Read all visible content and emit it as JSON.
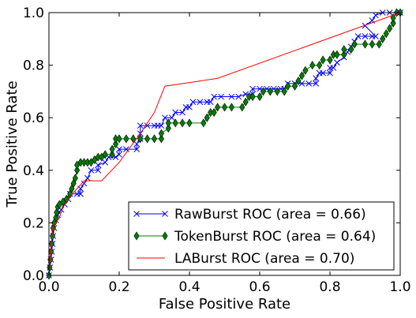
{
  "chart_data": {
    "type": "line",
    "title": "",
    "xlabel": "False Positive Rate",
    "ylabel": "True Positive Rate",
    "xlim": [
      0.0,
      1.0
    ],
    "ylim": [
      0.0,
      1.0
    ],
    "xticks": [
      "0.0",
      "0.2",
      "0.4",
      "0.6",
      "0.8",
      "1.0"
    ],
    "yticks": [
      "0.0",
      "0.2",
      "0.4",
      "0.6",
      "0.8",
      "1.0"
    ],
    "grid": false,
    "legend_position": "lower-right",
    "series": [
      {
        "name": "RawBurst ROC (area = 0.66)",
        "color": "#0000ff",
        "marker": "x",
        "points": [
          [
            0.0,
            0.0
          ],
          [
            0.003,
            0.03
          ],
          [
            0.006,
            0.06
          ],
          [
            0.008,
            0.09
          ],
          [
            0.01,
            0.12
          ],
          [
            0.012,
            0.15
          ],
          [
            0.015,
            0.18
          ],
          [
            0.02,
            0.21
          ],
          [
            0.025,
            0.23
          ],
          [
            0.035,
            0.25
          ],
          [
            0.045,
            0.27
          ],
          [
            0.055,
            0.29
          ],
          [
            0.06,
            0.31
          ],
          [
            0.08,
            0.31
          ],
          [
            0.09,
            0.31
          ],
          [
            0.09,
            0.33
          ],
          [
            0.1,
            0.35
          ],
          [
            0.11,
            0.37
          ],
          [
            0.12,
            0.4
          ],
          [
            0.14,
            0.4
          ],
          [
            0.14,
            0.42
          ],
          [
            0.16,
            0.43
          ],
          [
            0.17,
            0.45
          ],
          [
            0.19,
            0.45
          ],
          [
            0.2,
            0.46
          ],
          [
            0.2,
            0.48
          ],
          [
            0.22,
            0.48
          ],
          [
            0.25,
            0.48
          ],
          [
            0.25,
            0.5
          ],
          [
            0.26,
            0.52
          ],
          [
            0.26,
            0.54
          ],
          [
            0.26,
            0.57
          ],
          [
            0.28,
            0.57
          ],
          [
            0.3,
            0.57
          ],
          [
            0.31,
            0.57
          ],
          [
            0.32,
            0.57
          ],
          [
            0.33,
            0.6
          ],
          [
            0.35,
            0.6
          ],
          [
            0.36,
            0.62
          ],
          [
            0.38,
            0.62
          ],
          [
            0.39,
            0.64
          ],
          [
            0.4,
            0.64
          ],
          [
            0.41,
            0.66
          ],
          [
            0.43,
            0.66
          ],
          [
            0.45,
            0.66
          ],
          [
            0.46,
            0.66
          ],
          [
            0.47,
            0.68
          ],
          [
            0.49,
            0.68
          ],
          [
            0.52,
            0.68
          ],
          [
            0.54,
            0.68
          ],
          [
            0.56,
            0.69
          ],
          [
            0.58,
            0.69
          ],
          [
            0.58,
            0.71
          ],
          [
            0.6,
            0.71
          ],
          [
            0.62,
            0.71
          ],
          [
            0.64,
            0.71
          ],
          [
            0.66,
            0.71
          ],
          [
            0.67,
            0.71
          ],
          [
            0.68,
            0.73
          ],
          [
            0.7,
            0.73
          ],
          [
            0.72,
            0.73
          ],
          [
            0.74,
            0.73
          ],
          [
            0.76,
            0.73
          ],
          [
            0.76,
            0.75
          ],
          [
            0.77,
            0.77
          ],
          [
            0.78,
            0.77
          ],
          [
            0.8,
            0.77
          ],
          [
            0.8,
            0.79
          ],
          [
            0.81,
            0.79
          ],
          [
            0.82,
            0.81
          ],
          [
            0.84,
            0.83
          ],
          [
            0.85,
            0.85
          ],
          [
            0.86,
            0.87
          ],
          [
            0.87,
            0.89
          ],
          [
            0.88,
            0.91
          ],
          [
            0.9,
            0.91
          ],
          [
            0.92,
            0.91
          ],
          [
            0.93,
            0.91
          ],
          [
            0.9,
            0.95
          ],
          [
            0.92,
            0.97
          ],
          [
            0.93,
            0.99
          ],
          [
            0.95,
            1.0
          ],
          [
            0.97,
            1.0
          ],
          [
            1.0,
            1.0
          ]
        ]
      },
      {
        "name": "TokenBurst ROC (area = 0.64)",
        "color": "#007f00",
        "marker": "diamond",
        "points": [
          [
            0.0,
            0.0
          ],
          [
            0.002,
            0.03
          ],
          [
            0.004,
            0.06
          ],
          [
            0.006,
            0.09
          ],
          [
            0.008,
            0.12
          ],
          [
            0.01,
            0.15
          ],
          [
            0.012,
            0.18
          ],
          [
            0.015,
            0.2
          ],
          [
            0.02,
            0.22
          ],
          [
            0.022,
            0.24
          ],
          [
            0.025,
            0.26
          ],
          [
            0.03,
            0.27
          ],
          [
            0.04,
            0.28
          ],
          [
            0.05,
            0.29
          ],
          [
            0.06,
            0.31
          ],
          [
            0.065,
            0.33
          ],
          [
            0.07,
            0.35
          ],
          [
            0.075,
            0.37
          ],
          [
            0.08,
            0.4
          ],
          [
            0.08,
            0.42
          ],
          [
            0.09,
            0.43
          ],
          [
            0.1,
            0.43
          ],
          [
            0.11,
            0.43
          ],
          [
            0.12,
            0.43
          ],
          [
            0.13,
            0.44
          ],
          [
            0.14,
            0.45
          ],
          [
            0.15,
            0.45
          ],
          [
            0.16,
            0.46
          ],
          [
            0.18,
            0.46
          ],
          [
            0.18,
            0.48
          ],
          [
            0.19,
            0.5
          ],
          [
            0.19,
            0.52
          ],
          [
            0.2,
            0.52
          ],
          [
            0.22,
            0.52
          ],
          [
            0.24,
            0.52
          ],
          [
            0.26,
            0.52
          ],
          [
            0.28,
            0.52
          ],
          [
            0.3,
            0.52
          ],
          [
            0.32,
            0.52
          ],
          [
            0.32,
            0.54
          ],
          [
            0.34,
            0.56
          ],
          [
            0.34,
            0.58
          ],
          [
            0.36,
            0.58
          ],
          [
            0.38,
            0.58
          ],
          [
            0.4,
            0.58
          ],
          [
            0.44,
            0.58
          ],
          [
            0.45,
            0.6
          ],
          [
            0.46,
            0.62
          ],
          [
            0.47,
            0.62
          ],
          [
            0.48,
            0.64
          ],
          [
            0.5,
            0.64
          ],
          [
            0.52,
            0.64
          ],
          [
            0.55,
            0.64
          ],
          [
            0.56,
            0.66
          ],
          [
            0.57,
            0.68
          ],
          [
            0.58,
            0.68
          ],
          [
            0.6,
            0.68
          ],
          [
            0.61,
            0.7
          ],
          [
            0.63,
            0.7
          ],
          [
            0.65,
            0.7
          ],
          [
            0.67,
            0.7
          ],
          [
            0.68,
            0.72
          ],
          [
            0.7,
            0.72
          ],
          [
            0.71,
            0.74
          ],
          [
            0.72,
            0.76
          ],
          [
            0.73,
            0.78
          ],
          [
            0.75,
            0.8
          ],
          [
            0.77,
            0.8
          ],
          [
            0.78,
            0.82
          ],
          [
            0.8,
            0.82
          ],
          [
            0.81,
            0.84
          ],
          [
            0.82,
            0.84
          ],
          [
            0.84,
            0.84
          ],
          [
            0.84,
            0.86
          ],
          [
            0.86,
            0.86
          ],
          [
            0.87,
            0.88
          ],
          [
            0.9,
            0.88
          ],
          [
            0.92,
            0.88
          ],
          [
            0.94,
            0.88
          ],
          [
            0.95,
            0.9
          ],
          [
            0.96,
            0.92
          ],
          [
            0.97,
            0.94
          ],
          [
            0.98,
            0.96
          ],
          [
            0.98,
            0.98
          ],
          [
            0.99,
            1.0
          ],
          [
            1.0,
            1.0
          ]
        ]
      },
      {
        "name": "LABurst ROC (area = 0.70)",
        "color": "#ff0000",
        "marker": "none",
        "points": [
          [
            0.0,
            0.0
          ],
          [
            0.01,
            0.18
          ],
          [
            0.02,
            0.2
          ],
          [
            0.03,
            0.22
          ],
          [
            0.04,
            0.26
          ],
          [
            0.06,
            0.3
          ],
          [
            0.08,
            0.33
          ],
          [
            0.1,
            0.36
          ],
          [
            0.15,
            0.36
          ],
          [
            0.2,
            0.43
          ],
          [
            0.26,
            0.54
          ],
          [
            0.3,
            0.62
          ],
          [
            0.33,
            0.72
          ],
          [
            0.48,
            0.75
          ],
          [
            1.0,
            1.0
          ]
        ]
      }
    ]
  }
}
